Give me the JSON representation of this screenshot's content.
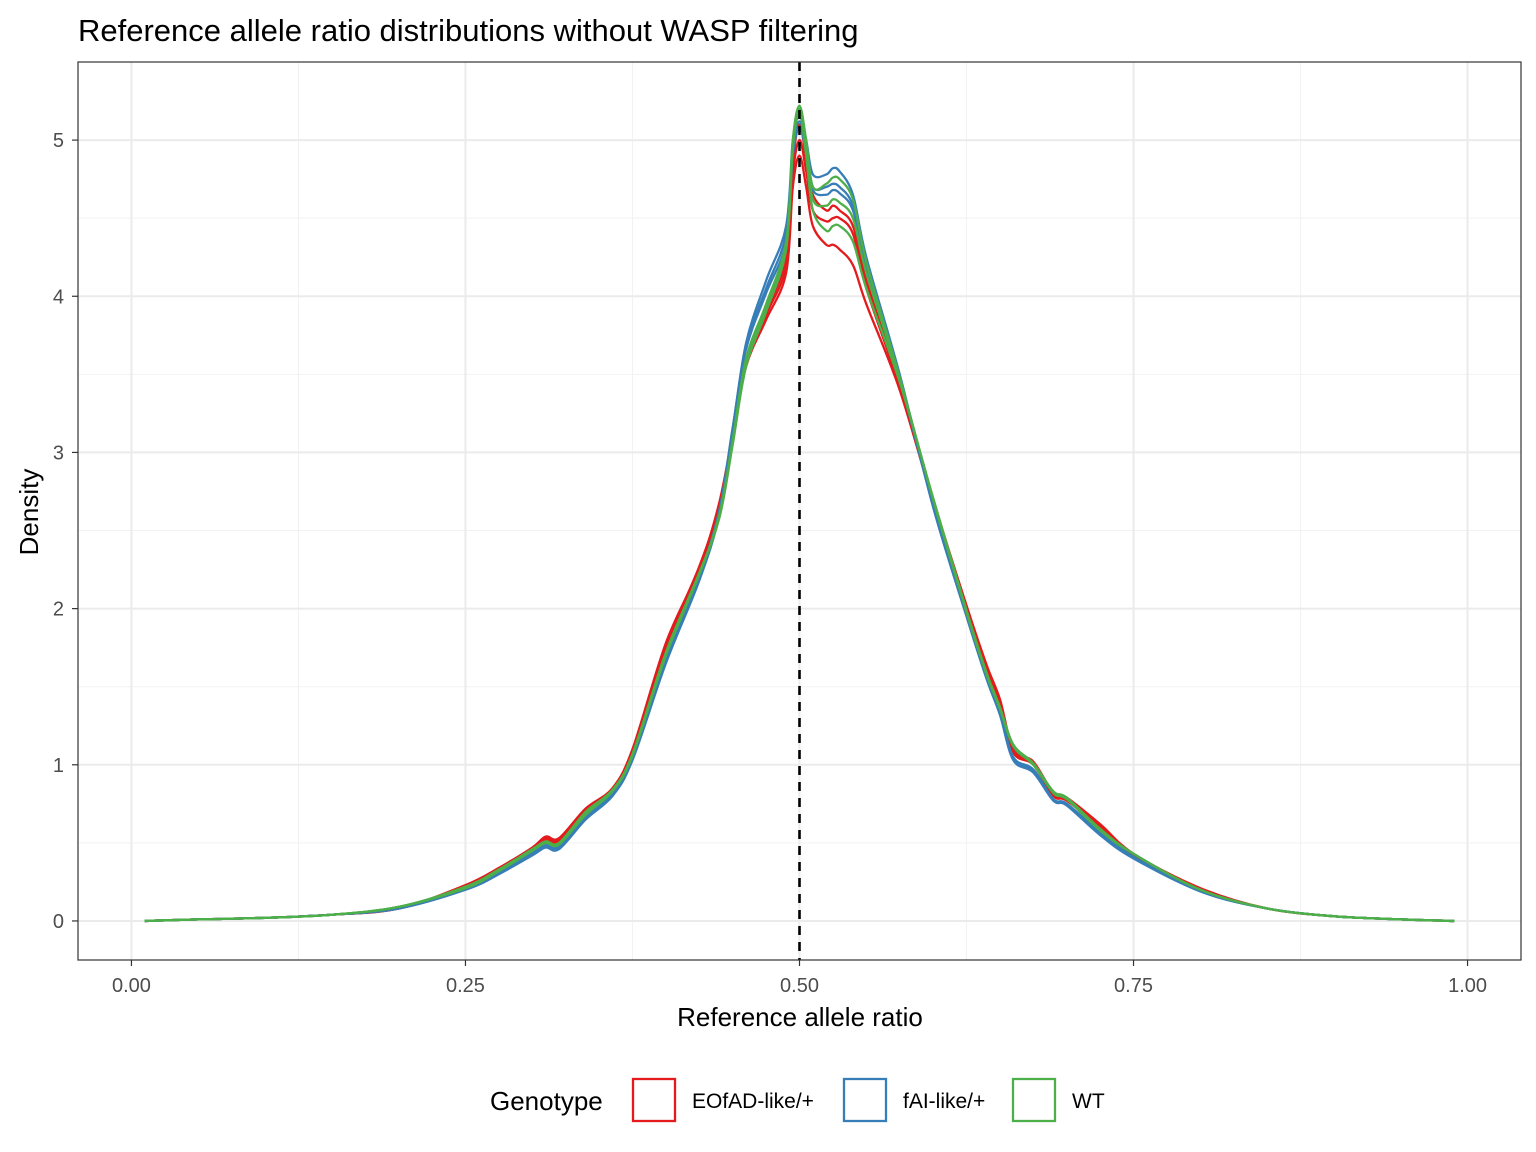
{
  "chart_data": {
    "type": "line",
    "title": "Reference allele ratio distributions without WASP filtering",
    "xlabel": "Reference allele ratio",
    "ylabel": "Density",
    "xlim": [
      -0.04,
      1.04
    ],
    "ylim": [
      -0.25,
      5.5
    ],
    "x_ticks": [
      0.0,
      0.25,
      0.5,
      0.75,
      1.0
    ],
    "x_tick_labels": [
      "0.00",
      "0.25",
      "0.50",
      "0.75",
      "1.00"
    ],
    "y_ticks": [
      0,
      1,
      2,
      3,
      4,
      5
    ],
    "y_tick_labels": [
      "0",
      "1",
      "2",
      "3",
      "4",
      "5"
    ],
    "grid": true,
    "reference_line": {
      "x": 0.5,
      "style": "dashed",
      "color": "#000000"
    },
    "legend": {
      "title": "Genotype",
      "position": "bottom",
      "items": [
        {
          "label": "EOfAD-like/+",
          "color": "#E41A1C"
        },
        {
          "label": "fAI-like/+",
          "color": "#377EB8"
        },
        {
          "label": "WT",
          "color": "#4DAF4A"
        }
      ]
    },
    "x": [
      0.01,
      0.05,
      0.1,
      0.15,
      0.2,
      0.25,
      0.275,
      0.3,
      0.31,
      0.32,
      0.34,
      0.36,
      0.375,
      0.4,
      0.425,
      0.44,
      0.45,
      0.46,
      0.475,
      0.49,
      0.495,
      0.5,
      0.505,
      0.51,
      0.52,
      0.525,
      0.53,
      0.54,
      0.55,
      0.575,
      0.6,
      0.625,
      0.64,
      0.65,
      0.66,
      0.675,
      0.69,
      0.7,
      0.725,
      0.75,
      0.8,
      0.85,
      0.9,
      0.95,
      0.99
    ],
    "series": [
      {
        "group": "EOfAD-like/+",
        "color": "#E41A1C",
        "values": [
          0.0,
          0.01,
          0.02,
          0.04,
          0.08,
          0.22,
          0.32,
          0.45,
          0.53,
          0.52,
          0.7,
          0.83,
          1.08,
          1.75,
          2.25,
          2.65,
          3.1,
          3.55,
          3.85,
          4.15,
          4.7,
          4.9,
          4.7,
          4.45,
          4.33,
          4.33,
          4.3,
          4.2,
          3.95,
          3.4,
          2.68,
          2.0,
          1.62,
          1.4,
          1.08,
          1.0,
          0.8,
          0.77,
          0.6,
          0.42,
          0.2,
          0.08,
          0.03,
          0.01,
          0.0
        ]
      },
      {
        "group": "EOfAD-like/+",
        "color": "#E41A1C",
        "values": [
          0.0,
          0.01,
          0.02,
          0.04,
          0.08,
          0.23,
          0.34,
          0.47,
          0.54,
          0.53,
          0.72,
          0.85,
          1.1,
          1.78,
          2.26,
          2.68,
          3.12,
          3.57,
          3.9,
          4.25,
          4.85,
          5.1,
          4.88,
          4.65,
          4.55,
          4.58,
          4.55,
          4.45,
          4.1,
          3.45,
          2.7,
          2.02,
          1.64,
          1.42,
          1.1,
          1.02,
          0.82,
          0.79,
          0.62,
          0.43,
          0.21,
          0.08,
          0.03,
          0.01,
          0.0
        ]
      },
      {
        "group": "EOfAD-like/+",
        "color": "#E41A1C",
        "values": [
          0.0,
          0.01,
          0.02,
          0.04,
          0.08,
          0.21,
          0.33,
          0.46,
          0.52,
          0.51,
          0.71,
          0.84,
          1.09,
          1.76,
          2.27,
          2.66,
          3.11,
          3.56,
          3.88,
          4.2,
          4.78,
          5.0,
          4.8,
          4.55,
          4.48,
          4.5,
          4.5,
          4.4,
          4.05,
          3.42,
          2.69,
          2.01,
          1.63,
          1.41,
          1.09,
          1.01,
          0.81,
          0.78,
          0.61,
          0.42,
          0.2,
          0.08,
          0.03,
          0.01,
          0.0
        ]
      },
      {
        "group": "fAI-like/+",
        "color": "#377EB8",
        "values": [
          0.0,
          0.01,
          0.02,
          0.04,
          0.08,
          0.2,
          0.3,
          0.42,
          0.47,
          0.46,
          0.65,
          0.8,
          1.03,
          1.65,
          2.18,
          2.6,
          3.15,
          3.7,
          4.1,
          4.45,
          5.0,
          5.15,
          5.0,
          4.78,
          4.78,
          4.82,
          4.8,
          4.65,
          4.25,
          3.5,
          2.65,
          1.95,
          1.55,
          1.32,
          1.03,
          0.95,
          0.77,
          0.74,
          0.55,
          0.4,
          0.19,
          0.08,
          0.03,
          0.01,
          0.0
        ]
      },
      {
        "group": "fAI-like/+",
        "color": "#377EB8",
        "values": [
          0.0,
          0.01,
          0.02,
          0.04,
          0.08,
          0.21,
          0.31,
          0.43,
          0.48,
          0.47,
          0.66,
          0.81,
          1.04,
          1.67,
          2.2,
          2.62,
          3.15,
          3.68,
          4.05,
          4.4,
          4.95,
          5.12,
          4.95,
          4.7,
          4.7,
          4.72,
          4.7,
          4.58,
          4.2,
          3.48,
          2.66,
          1.96,
          1.56,
          1.33,
          1.04,
          0.96,
          0.78,
          0.75,
          0.56,
          0.41,
          0.19,
          0.08,
          0.03,
          0.01,
          0.0
        ]
      },
      {
        "group": "fAI-like/+",
        "color": "#377EB8",
        "values": [
          0.0,
          0.01,
          0.02,
          0.04,
          0.08,
          0.2,
          0.3,
          0.44,
          0.49,
          0.48,
          0.67,
          0.82,
          1.05,
          1.68,
          2.21,
          2.63,
          3.16,
          3.66,
          4.02,
          4.35,
          4.9,
          5.08,
          4.92,
          4.68,
          4.65,
          4.68,
          4.66,
          4.55,
          4.18,
          3.47,
          2.66,
          1.97,
          1.57,
          1.34,
          1.05,
          0.97,
          0.78,
          0.75,
          0.57,
          0.41,
          0.19,
          0.08,
          0.03,
          0.01,
          0.0
        ]
      },
      {
        "group": "WT",
        "color": "#4DAF4A",
        "values": [
          0.0,
          0.01,
          0.02,
          0.04,
          0.09,
          0.21,
          0.32,
          0.45,
          0.5,
          0.49,
          0.69,
          0.83,
          1.06,
          1.7,
          2.22,
          2.6,
          3.08,
          3.6,
          3.95,
          4.35,
          5.0,
          5.22,
          5.0,
          4.7,
          4.72,
          4.76,
          4.75,
          4.62,
          4.22,
          3.48,
          2.7,
          1.98,
          1.58,
          1.36,
          1.12,
          1.0,
          0.82,
          0.78,
          0.58,
          0.43,
          0.2,
          0.08,
          0.03,
          0.01,
          0.0
        ]
      },
      {
        "group": "WT",
        "color": "#4DAF4A",
        "values": [
          0.0,
          0.01,
          0.02,
          0.04,
          0.09,
          0.22,
          0.33,
          0.46,
          0.51,
          0.5,
          0.7,
          0.84,
          1.07,
          1.72,
          2.23,
          2.58,
          3.05,
          3.55,
          3.9,
          4.3,
          4.95,
          5.18,
          4.9,
          4.55,
          4.42,
          4.45,
          4.45,
          4.35,
          4.05,
          3.45,
          2.71,
          1.99,
          1.59,
          1.37,
          1.13,
          1.01,
          0.83,
          0.79,
          0.59,
          0.43,
          0.2,
          0.08,
          0.03,
          0.01,
          0.0
        ]
      },
      {
        "group": "WT",
        "color": "#4DAF4A",
        "values": [
          0.0,
          0.01,
          0.02,
          0.04,
          0.09,
          0.21,
          0.32,
          0.45,
          0.5,
          0.49,
          0.68,
          0.83,
          1.06,
          1.71,
          2.22,
          2.59,
          3.07,
          3.58,
          3.93,
          4.33,
          4.98,
          5.2,
          4.95,
          4.62,
          4.58,
          4.62,
          4.6,
          4.5,
          4.15,
          3.47,
          2.7,
          1.98,
          1.58,
          1.36,
          1.12,
          1.0,
          0.82,
          0.78,
          0.58,
          0.43,
          0.2,
          0.08,
          0.03,
          0.01,
          0.0
        ]
      }
    ]
  }
}
